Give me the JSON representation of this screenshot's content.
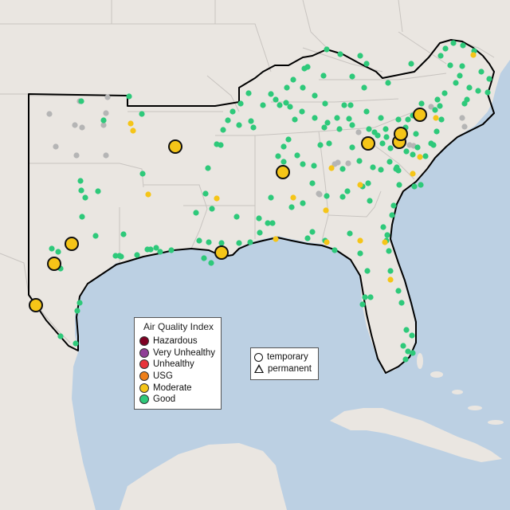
{
  "legend": {
    "title": "Air Quality Index",
    "categories": [
      {
        "label": "Hazardous",
        "color": "#7e0023"
      },
      {
        "label": "Very Unhealthy",
        "color": "#8f3f97"
      },
      {
        "label": "Unhealthy",
        "color": "#e8333a"
      },
      {
        "label": "USG",
        "color": "#ee7f1a"
      },
      {
        "label": "Moderate",
        "color": "#f5c518"
      },
      {
        "label": "Good",
        "color": "#2ec97a"
      }
    ]
  },
  "monitor_types": {
    "temporary_label": "temporary",
    "permanent_label": "permanent"
  },
  "map_colors": {
    "land": "#eae6e1",
    "water": "#bcd0e3",
    "state_border": "#c8c4c0",
    "region_outline": "#000000",
    "no_data": "#b5b5b5"
  }
}
